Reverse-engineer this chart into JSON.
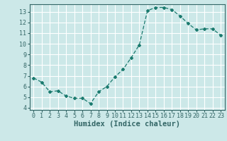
{
  "x": [
    0,
    1,
    2,
    3,
    4,
    5,
    6,
    7,
    8,
    9,
    10,
    11,
    12,
    13,
    14,
    15,
    16,
    17,
    18,
    19,
    20,
    21,
    22,
    23
  ],
  "y": [
    6.8,
    6.4,
    5.5,
    5.6,
    5.1,
    4.9,
    4.9,
    4.4,
    5.5,
    6.0,
    6.9,
    7.6,
    8.7,
    9.9,
    13.1,
    13.4,
    13.4,
    13.2,
    12.6,
    11.9,
    11.3,
    11.4,
    11.4,
    10.8
  ],
  "xlabel": "Humidex (Indice chaleur)",
  "ylim": [
    3.8,
    13.7
  ],
  "xlim": [
    -0.5,
    23.5
  ],
  "yticks": [
    4,
    5,
    6,
    7,
    8,
    9,
    10,
    11,
    12,
    13
  ],
  "xticks": [
    0,
    1,
    2,
    3,
    4,
    5,
    6,
    7,
    8,
    9,
    10,
    11,
    12,
    13,
    14,
    15,
    16,
    17,
    18,
    19,
    20,
    21,
    22,
    23
  ],
  "line_color": "#1a7a6e",
  "marker": "D",
  "marker_size": 2.0,
  "bg_color": "#cce8e8",
  "grid_color": "#ffffff",
  "xlabel_fontsize": 7.5,
  "tick_fontsize": 6.0,
  "spine_color": "#336666"
}
